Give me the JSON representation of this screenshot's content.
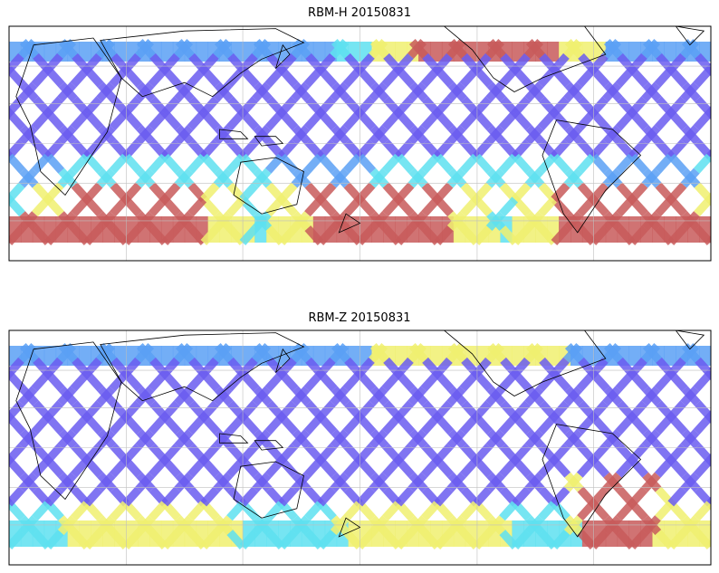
{
  "panels": [
    {
      "title": "RBM-H 20150831",
      "variable": "RBM-H"
    },
    {
      "title": "RBM-Z 20150831",
      "variable": "RBM-Z"
    }
  ],
  "map": {
    "projection": "equirectangular",
    "lon_range": [
      0,
      360
    ],
    "lat_range": [
      -60,
      60
    ],
    "graticule_lon_step": 60,
    "graticule_lat_step": 20,
    "grid": true,
    "coastlines": true
  },
  "colormap": {
    "low": "#6a5cf0",
    "mid_low": "#5aa0f5",
    "mid": "#5ee0f0",
    "mid_high": "#f0f070",
    "high": "#c85a5a"
  }
}
